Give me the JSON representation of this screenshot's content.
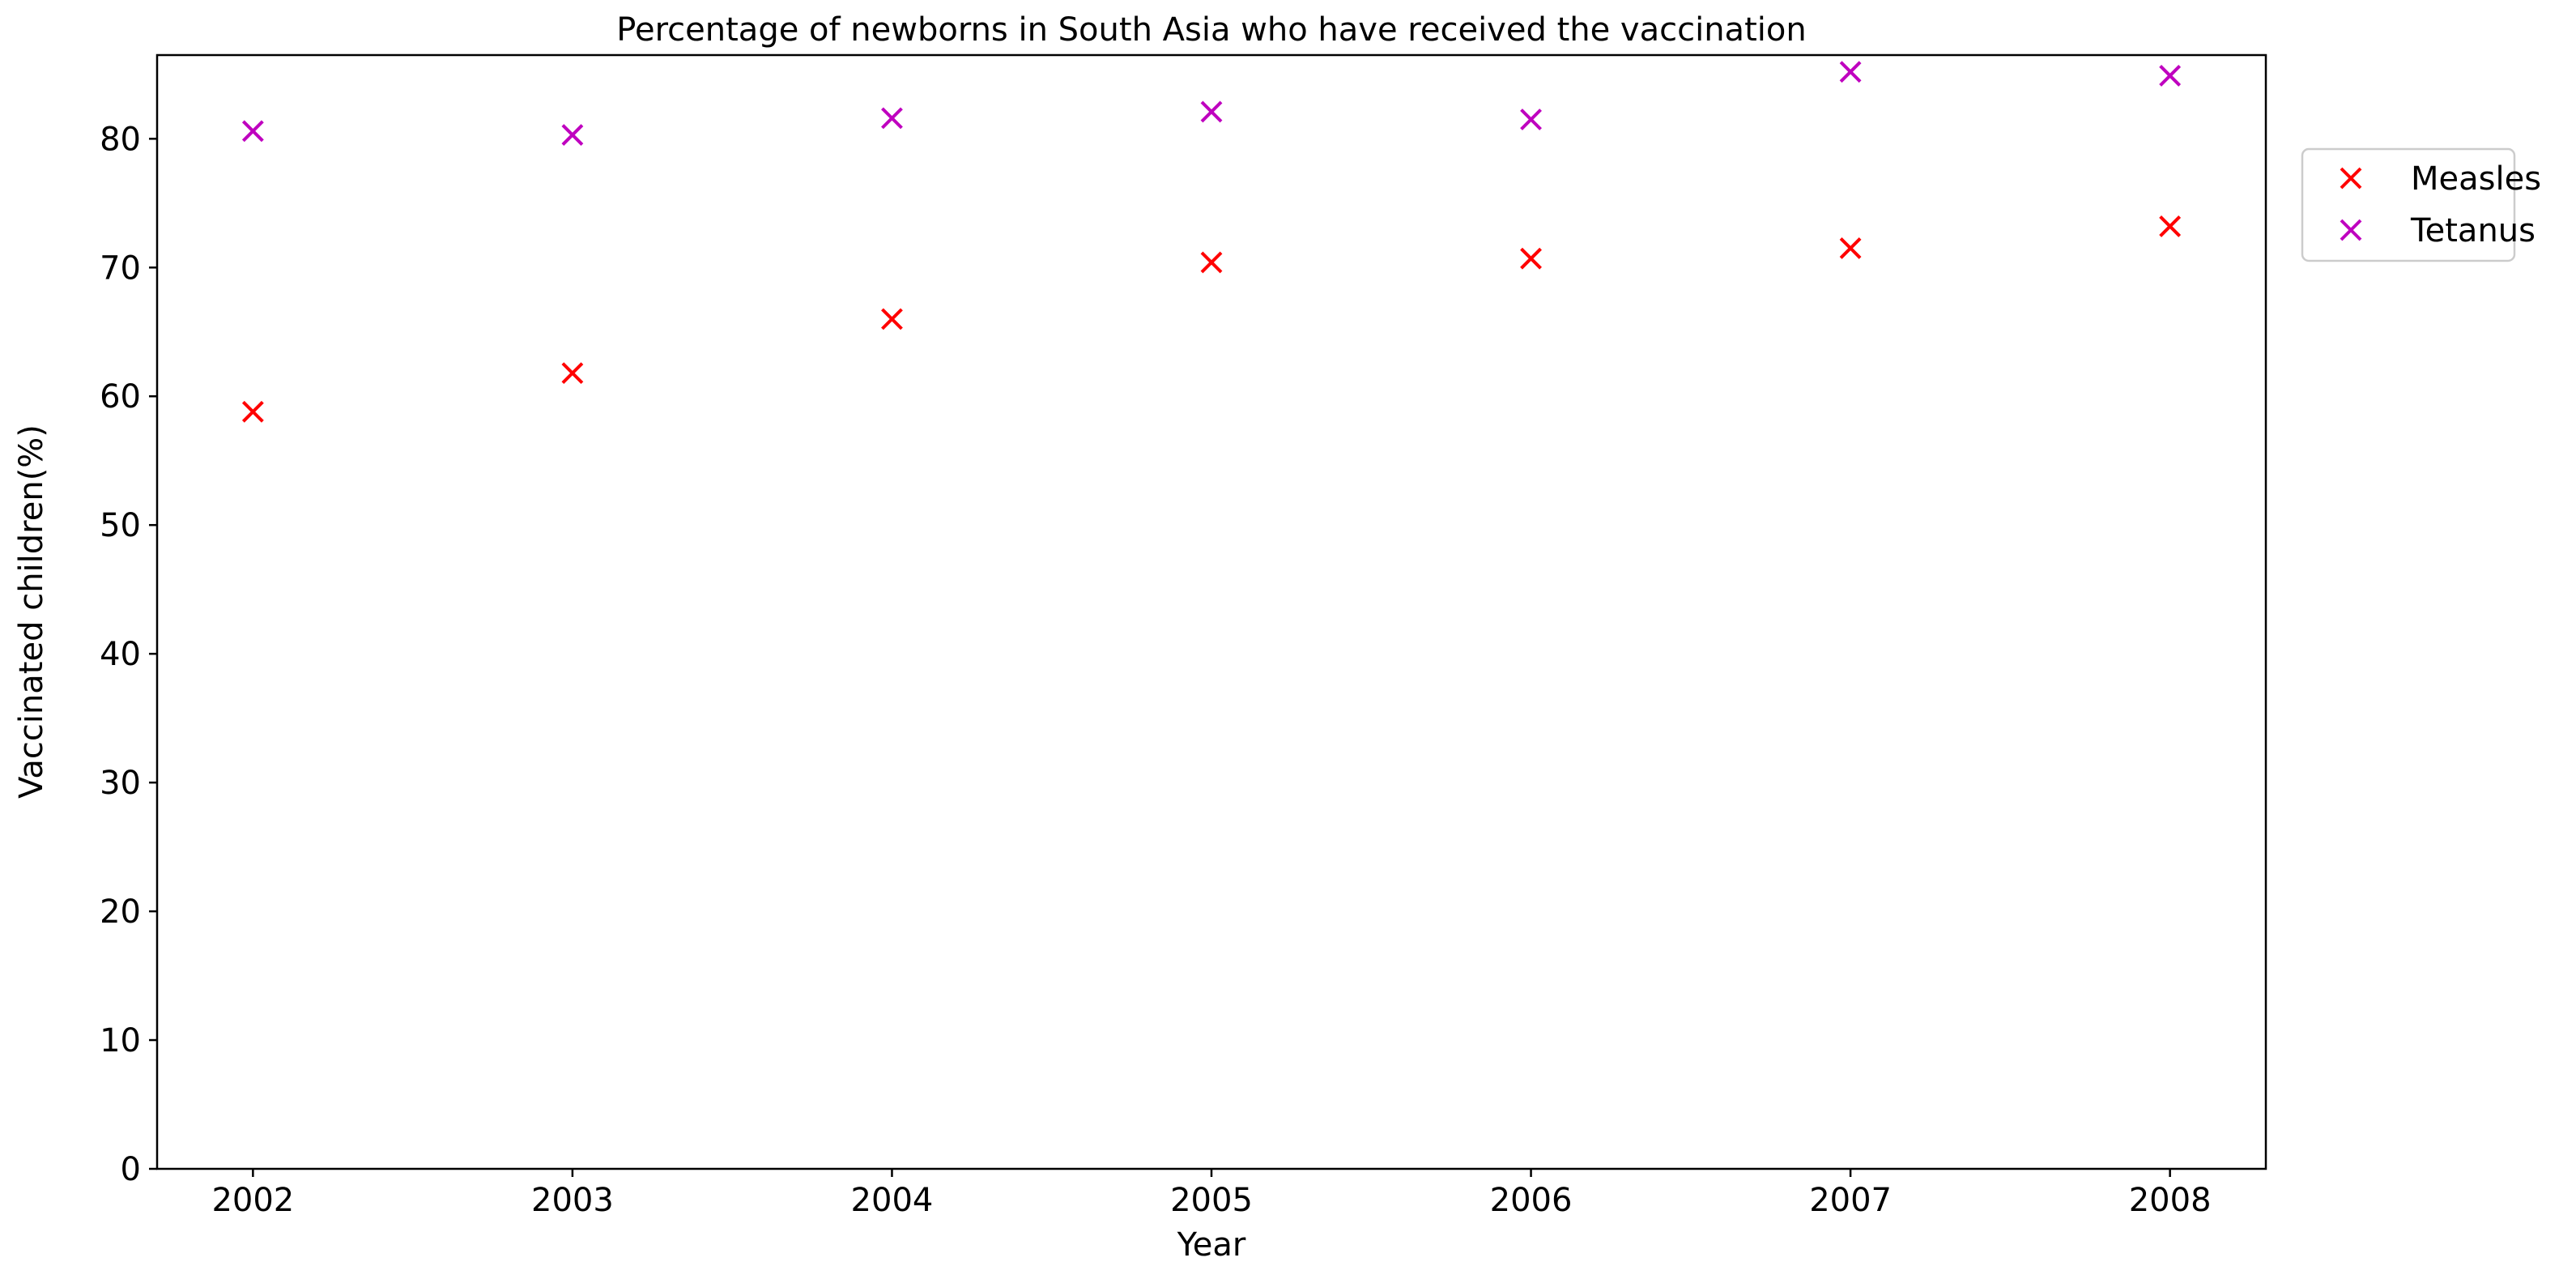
{
  "chart_data": {
    "type": "scatter",
    "title": "Percentage of newborns in South Asia who have received the vaccination",
    "xlabel": "Year",
    "ylabel": "Vaccinated children(%)",
    "x": [
      2002,
      2003,
      2004,
      2005,
      2006,
      2007,
      2008
    ],
    "xticks": [
      "2002",
      "2003",
      "2004",
      "2005",
      "2006",
      "2007",
      "2008"
    ],
    "yticks": [
      "0",
      "10",
      "20",
      "30",
      "40",
      "50",
      "60",
      "70",
      "80"
    ],
    "xlim": [
      2001.7,
      2008.3
    ],
    "ylim": [
      0,
      86.5
    ],
    "marker": "x",
    "grid": false,
    "legend_position": "outside-right-top",
    "series": [
      {
        "name": "Measles",
        "color": "#ff0000",
        "values": [
          58.8,
          61.8,
          66.0,
          70.4,
          70.7,
          71.5,
          73.2
        ]
      },
      {
        "name": "Tetanus",
        "color": "#bf00bf",
        "values": [
          80.6,
          80.3,
          81.6,
          82.1,
          81.5,
          85.2,
          84.9
        ]
      }
    ]
  }
}
